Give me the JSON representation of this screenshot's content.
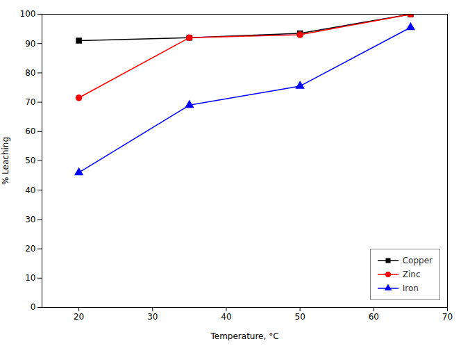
{
  "chart_data": {
    "type": "line",
    "x": [
      20,
      35,
      50,
      65
    ],
    "series": [
      {
        "name": "Copper",
        "color": "#000000",
        "marker": "square",
        "values": [
          91,
          92,
          93.5,
          100
        ]
      },
      {
        "name": "Zinc",
        "color": "#ff0000",
        "marker": "circle",
        "values": [
          71.5,
          92,
          93,
          100
        ]
      },
      {
        "name": "Iron",
        "color": "#0000ff",
        "marker": "triangle",
        "values": [
          46,
          69,
          75.5,
          95.5
        ]
      }
    ],
    "xlabel": "Temperature, °C",
    "ylabel": "% Leaching",
    "xlim": [
      15,
      70
    ],
    "ylim": [
      0,
      100
    ],
    "xticks": [
      20,
      30,
      40,
      50,
      60,
      70
    ],
    "yticks": [
      0,
      10,
      20,
      30,
      40,
      50,
      60,
      70,
      80,
      90,
      100
    ],
    "grid": false,
    "legend": "lower right"
  }
}
